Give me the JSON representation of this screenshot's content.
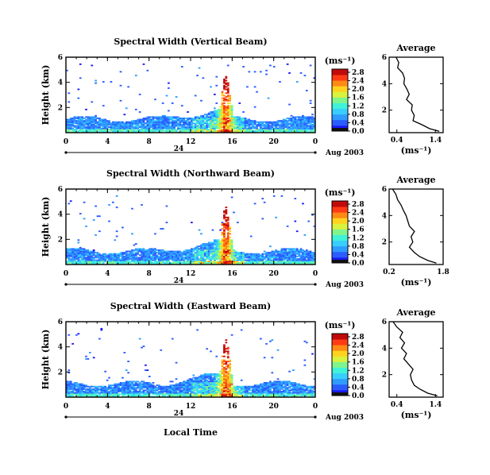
{
  "figure": {
    "common_xlabel": "Local Time",
    "date_center": "24",
    "date_right": "Aug 2003"
  },
  "colorscale": {
    "colors": [
      "#1a1aff",
      "#2a5dff",
      "#2f9bff",
      "#38cfff",
      "#3ff2d8",
      "#7ff58d",
      "#d9f23e",
      "#ffd21e",
      "#ff8a16",
      "#ff3b14",
      "#c10b0b"
    ]
  },
  "chart_data": [
    {
      "type": "heatmap",
      "title": "Spectral Width (Vertical Beam)",
      "ylabel": "Height (km)",
      "xlim": [
        0,
        24
      ],
      "ylim": [
        0,
        6
      ],
      "x_ticks": [
        "0",
        "4",
        "8",
        "12",
        "16",
        "20",
        "0"
      ],
      "y_ticks": [
        "2",
        "4",
        "6"
      ],
      "colorbar": {
        "units": "(ms⁻¹)",
        "ticks": [
          "0.0",
          "0.4",
          "0.8",
          "1.2",
          "1.6",
          "2.0",
          "2.4",
          "2.8"
        ],
        "max": 2.9
      },
      "profile": {
        "title": "Average",
        "xlabel": "(ms⁻¹)",
        "x_ticks": [
          "0.4",
          "1.4"
        ],
        "xlim": [
          0.2,
          1.6
        ],
        "y_ticks": [
          "2",
          "4",
          "6"
        ],
        "ylim": [
          0.3,
          6
        ],
        "height": [
          6.0,
          5.6,
          5.2,
          4.8,
          4.4,
          4.0,
          3.6,
          3.2,
          2.8,
          2.4,
          2.0,
          1.6,
          1.2,
          0.9,
          0.6,
          0.4
        ],
        "value": [
          0.38,
          0.45,
          0.42,
          0.55,
          0.6,
          0.58,
          0.66,
          0.72,
          0.65,
          0.8,
          0.78,
          0.85,
          0.82,
          1.05,
          1.25,
          1.5
        ]
      }
    },
    {
      "type": "heatmap",
      "title": "Spectral Width (Northward Beam)",
      "ylabel": "Height (km)",
      "xlim": [
        0,
        24
      ],
      "ylim": [
        0,
        6
      ],
      "x_ticks": [
        "0",
        "4",
        "8",
        "12",
        "16",
        "20",
        "0"
      ],
      "y_ticks": [
        "2",
        "4",
        "6"
      ],
      "colorbar": {
        "units": "(ms⁻¹)",
        "ticks": [
          "0.0",
          "0.4",
          "0.8",
          "1.2",
          "1.6",
          "2.0",
          "2.4",
          "2.8"
        ],
        "max": 2.9
      },
      "profile": {
        "title": "Average",
        "xlabel": "(ms⁻¹)",
        "x_ticks": [
          "0.2",
          "1.8"
        ],
        "xlim": [
          0.2,
          1.8
        ],
        "y_ticks": [
          "2",
          "4",
          "6"
        ],
        "ylim": [
          0.3,
          6
        ],
        "height": [
          6.0,
          5.6,
          5.2,
          4.8,
          4.4,
          4.0,
          3.6,
          3.2,
          2.8,
          2.4,
          2.0,
          1.6,
          1.2,
          0.9,
          0.6,
          0.4
        ],
        "value": [
          0.3,
          0.4,
          0.45,
          0.55,
          0.62,
          0.7,
          0.75,
          0.8,
          0.95,
          0.85,
          0.9,
          0.8,
          0.95,
          1.1,
          1.35,
          1.6
        ]
      }
    },
    {
      "type": "heatmap",
      "title": "Spectral Width (Eastward Beam)",
      "ylabel": "Height (km)",
      "xlim": [
        0,
        24
      ],
      "ylim": [
        0,
        6
      ],
      "x_ticks": [
        "0",
        "4",
        "8",
        "12",
        "16",
        "20",
        "0"
      ],
      "y_ticks": [
        "2",
        "4",
        "6"
      ],
      "colorbar": {
        "units": "(ms⁻¹)",
        "ticks": [
          "0.0",
          "0.4",
          "0.8",
          "1.2",
          "1.6",
          "2.0",
          "2.4",
          "2.8"
        ],
        "max": 2.9
      },
      "profile": {
        "title": "Average",
        "xlabel": "(ms⁻¹)",
        "x_ticks": [
          "0.4",
          "1.4"
        ],
        "xlim": [
          0.2,
          1.6
        ],
        "y_ticks": [
          "2",
          "4",
          "6"
        ],
        "ylim": [
          0.3,
          6
        ],
        "height": [
          6.0,
          5.6,
          5.2,
          4.8,
          4.4,
          4.0,
          3.6,
          3.2,
          2.8,
          2.4,
          2.0,
          1.6,
          1.2,
          0.9,
          0.6,
          0.4
        ],
        "value": [
          0.3,
          0.4,
          0.55,
          0.48,
          0.6,
          0.52,
          0.65,
          0.58,
          0.7,
          0.82,
          0.75,
          0.78,
          0.85,
          1.0,
          1.2,
          1.45
        ]
      }
    }
  ]
}
